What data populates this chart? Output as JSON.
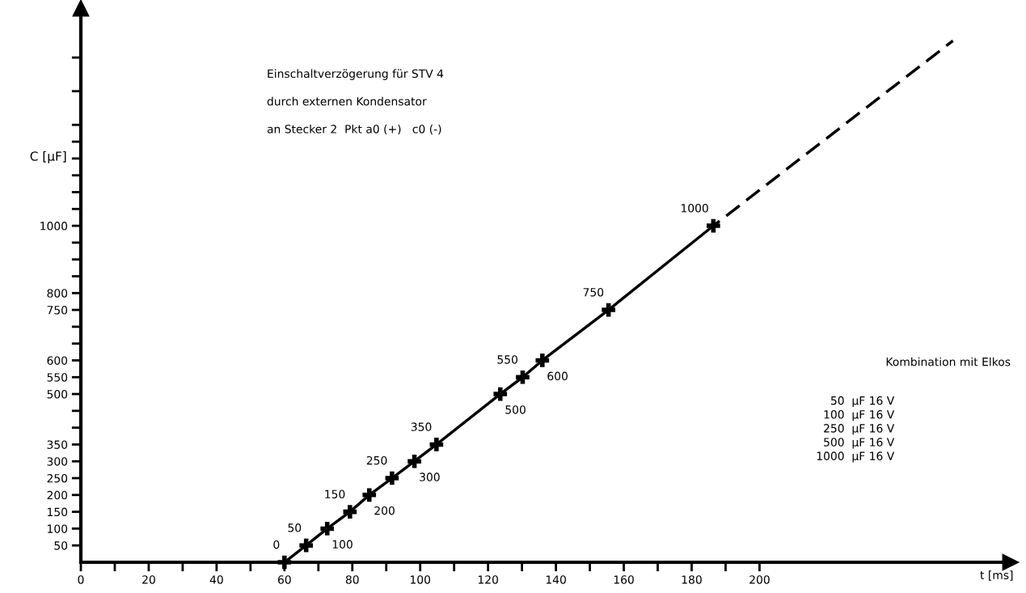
{
  "chart_data": {
    "type": "line",
    "xlabel": "t [ms]",
    "ylabel": "C [μF]",
    "series": [
      {
        "color": "#000000",
        "marker": "cross",
        "line_style": "solid",
        "x": [
          60,
          66.4,
          72.6,
          79.3,
          85,
          91.7,
          98.3,
          104.8,
          123.6,
          130.2,
          136,
          155.5,
          186.4
        ],
        "values": [
          0,
          50,
          100,
          150,
          200,
          250,
          300,
          350,
          500,
          550,
          600,
          750,
          1000
        ],
        "value_labels": [
          "0",
          "50",
          "100",
          "150",
          "200",
          "250",
          "300",
          "350",
          "500",
          "550",
          "600",
          "750",
          "1000"
        ]
      },
      {
        "color": "#000000",
        "marker": "none",
        "line_style": "dashed",
        "x": [
          186.4,
          257
        ],
        "values": [
          1000,
          1550
        ]
      }
    ],
    "xlim": [
      0,
      274
    ],
    "ylim": [
      0,
      1647
    ],
    "xticks": [
      0,
      {
        "value": 10,
        "label": null
      },
      20,
      {
        "value": 30,
        "label": null
      },
      40,
      {
        "value": 50,
        "label": null
      },
      60,
      {
        "value": 70,
        "label": null
      },
      80,
      {
        "value": 90,
        "label": null
      },
      100,
      {
        "value": 110,
        "label": null
      },
      120,
      {
        "value": 130,
        "label": null
      },
      140,
      {
        "value": 150,
        "label": null
      },
      160,
      {
        "value": 170,
        "label": null
      },
      180,
      {
        "value": 190,
        "label": null
      },
      200
    ],
    "yticks": [
      50,
      100,
      150,
      200,
      250,
      300,
      350,
      {
        "value": 400,
        "label": null
      },
      {
        "value": 450,
        "label": null
      },
      500,
      550,
      600,
      {
        "value": 650,
        "label": null
      },
      {
        "value": 700,
        "label": null
      },
      750,
      800,
      {
        "value": 850,
        "label": null
      },
      {
        "value": 900,
        "label": null
      },
      {
        "value": 950,
        "label": null
      },
      1000,
      {
        "value": 1050,
        "label": null
      },
      {
        "value": 1100,
        "label": null
      },
      {
        "value": 1150,
        "label": null
      },
      {
        "value": 1200,
        "label": null
      },
      {
        "value": 1250,
        "label": null
      },
      {
        "value": 1300,
        "label": null
      },
      {
        "value": 1400,
        "label": null
      },
      {
        "value": 1500,
        "label": null
      }
    ],
    "grid": false,
    "annotations": [
      "Einschaltverzögerung für STV 4",
      "durch externen Kondensator",
      "an Stecker 2  Pkt a0 (+)   c0 (-)",
      "Kombination mit Elkos",
      "50  μF 16 V",
      "100  μF 16 V",
      "250  μF 16 V",
      "500  μF 16 V",
      "1000  μF 16 V"
    ]
  }
}
